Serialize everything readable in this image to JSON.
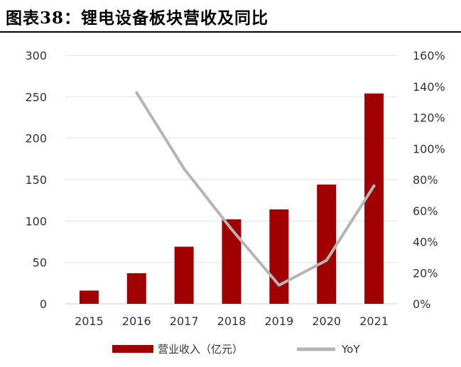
{
  "title": "图表38：锂电设备板块营收及同比",
  "chart_data": {
    "type": "bar",
    "categories": [
      "2015",
      "2016",
      "2017",
      "2018",
      "2019",
      "2020",
      "2021"
    ],
    "series": [
      {
        "name": "营业收入（亿元）",
        "type": "bar",
        "axis": "left",
        "color": "#A00000",
        "values": [
          16,
          37,
          69,
          102,
          114,
          144,
          254
        ]
      },
      {
        "name": "YoY",
        "type": "line",
        "axis": "right",
        "color": "#B5B5B5",
        "values": [
          null,
          1.36,
          0.87,
          0.48,
          0.12,
          0.28,
          0.76
        ]
      }
    ],
    "y_left": {
      "ylim": [
        0,
        300
      ],
      "ticks": [
        "0",
        "50",
        "100",
        "150",
        "200",
        "250",
        "300"
      ]
    },
    "y_right": {
      "ylim": [
        0,
        1.6
      ],
      "ticks": [
        "0%",
        "20%",
        "40%",
        "60%",
        "80%",
        "100%",
        "120%",
        "140%",
        "160%"
      ]
    },
    "grid": true,
    "legend": "bottom"
  }
}
